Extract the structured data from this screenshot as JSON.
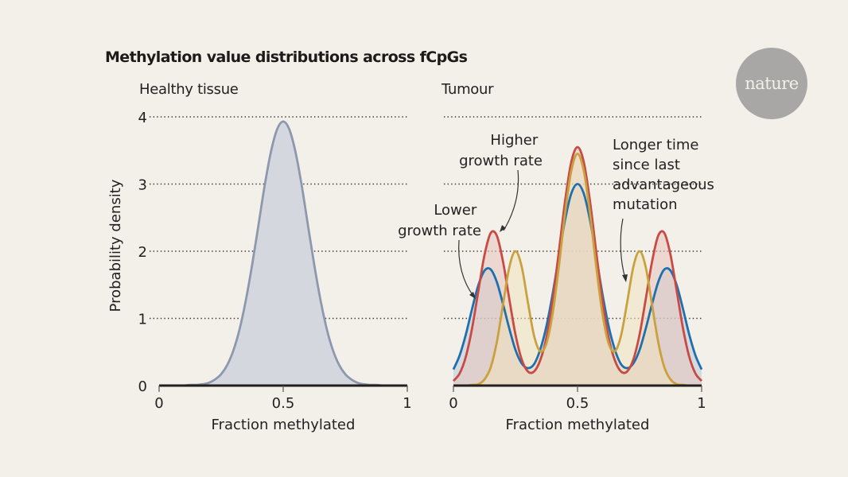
{
  "title": "Methylation value distributions across fCpGs",
  "logo": {
    "text": "nature",
    "color": "#a8a7a5"
  },
  "chart_data": [
    {
      "type": "area",
      "panel": "left",
      "title": "Healthy tissue",
      "xlabel": "Fraction methylated",
      "ylabel": "Probability density",
      "xlim": [
        0,
        1
      ],
      "ylim": [
        0,
        4
      ],
      "xticks": [
        "0",
        "0.5",
        "1"
      ],
      "yticks": [
        "0",
        "1",
        "2",
        "3",
        "4"
      ],
      "grid": true,
      "x": [
        0,
        0.025,
        0.05,
        0.075,
        0.1,
        0.125,
        0.15,
        0.175,
        0.2,
        0.225,
        0.25,
        0.275,
        0.3,
        0.325,
        0.35,
        0.375,
        0.4,
        0.425,
        0.45,
        0.475,
        0.5,
        0.525,
        0.55,
        0.575,
        0.6,
        0.625,
        0.65,
        0.675,
        0.7,
        0.725,
        0.75,
        0.775,
        0.8,
        0.825,
        0.85,
        0.875,
        0.9,
        0.925,
        0.95,
        0.975,
        1
      ],
      "series": [
        {
          "name": "Healthy tissue",
          "color": "#8d98ae",
          "fill": "#d4d8de",
          "values": [
            0,
            0,
            0,
            0,
            0,
            0.01,
            0.01,
            0.02,
            0.04,
            0.09,
            0.17,
            0.31,
            0.53,
            0.85,
            1.28,
            1.8,
            2.38,
            2.97,
            3.47,
            3.81,
            3.93,
            3.81,
            3.47,
            2.97,
            2.38,
            1.8,
            1.28,
            0.85,
            0.53,
            0.31,
            0.17,
            0.09,
            0.04,
            0.02,
            0.01,
            0.01,
            0,
            0,
            0,
            0,
            0
          ]
        }
      ]
    },
    {
      "type": "area",
      "panel": "right",
      "title": "Tumour",
      "xlabel": "Fraction methylated",
      "xlim": [
        0,
        1
      ],
      "ylim": [
        0,
        4
      ],
      "xticks": [
        "0",
        "0.5",
        "1"
      ],
      "grid": true,
      "x": [
        0,
        0.025,
        0.05,
        0.075,
        0.1,
        0.125,
        0.15,
        0.175,
        0.2,
        0.225,
        0.25,
        0.275,
        0.3,
        0.325,
        0.35,
        0.375,
        0.4,
        0.425,
        0.45,
        0.475,
        0.5,
        0.525,
        0.55,
        0.575,
        0.6,
        0.625,
        0.65,
        0.675,
        0.7,
        0.725,
        0.75,
        0.775,
        0.8,
        0.825,
        0.85,
        0.875,
        0.9,
        0.925,
        0.95,
        0.975,
        1
      ],
      "series": [
        {
          "name": "Lower growth rate",
          "color": "#1f6fae",
          "fill": "#b9cbd8",
          "values": [
            0.24,
            0.45,
            0.76,
            1.14,
            1.49,
            1.71,
            1.73,
            1.54,
            1.21,
            0.85,
            0.53,
            0.33,
            0.26,
            0.32,
            0.54,
            0.89,
            1.37,
            1.93,
            2.47,
            2.86,
            3.0,
            2.86,
            2.47,
            1.93,
            1.37,
            0.89,
            0.54,
            0.32,
            0.26,
            0.33,
            0.53,
            0.85,
            1.21,
            1.54,
            1.73,
            1.71,
            1.49,
            1.14,
            0.76,
            0.45,
            0.24
          ]
        },
        {
          "name": "Higher growth rate",
          "color": "#c84a45",
          "fill": "#e8c4bd",
          "values": [
            0.07,
            0.18,
            0.43,
            0.85,
            1.4,
            1.94,
            2.27,
            2.23,
            1.84,
            1.29,
            0.76,
            0.39,
            0.21,
            0.21,
            0.38,
            0.72,
            1.28,
            2.0,
            2.75,
            3.33,
            3.55,
            3.33,
            2.75,
            2.0,
            1.28,
            0.72,
            0.38,
            0.21,
            0.21,
            0.39,
            0.76,
            1.29,
            1.84,
            2.23,
            2.27,
            1.94,
            1.4,
            0.85,
            0.43,
            0.18,
            0.07
          ]
        },
        {
          "name": "Longer time since last advantageous mutation",
          "color": "#c9a13e",
          "fill": "#f0e4bf",
          "values": [
            0,
            0,
            0,
            0.01,
            0.02,
            0.09,
            0.27,
            0.65,
            1.21,
            1.76,
            2.0,
            1.77,
            1.24,
            0.74,
            0.51,
            0.63,
            1.08,
            1.78,
            2.57,
            3.2,
            3.45,
            3.2,
            2.57,
            1.78,
            1.08,
            0.63,
            0.51,
            0.74,
            1.24,
            1.77,
            2.0,
            1.76,
            1.21,
            0.65,
            0.27,
            0.09,
            0.02,
            0.01,
            0,
            0,
            0
          ]
        }
      ],
      "annotations": [
        {
          "id": "higher",
          "lines": [
            "Higher",
            "growth rate"
          ]
        },
        {
          "id": "lower",
          "lines": [
            "Lower",
            "growth rate"
          ]
        },
        {
          "id": "longer",
          "lines": [
            "Longer time",
            "since last",
            "advantageous",
            "mutation"
          ]
        }
      ]
    }
  ]
}
